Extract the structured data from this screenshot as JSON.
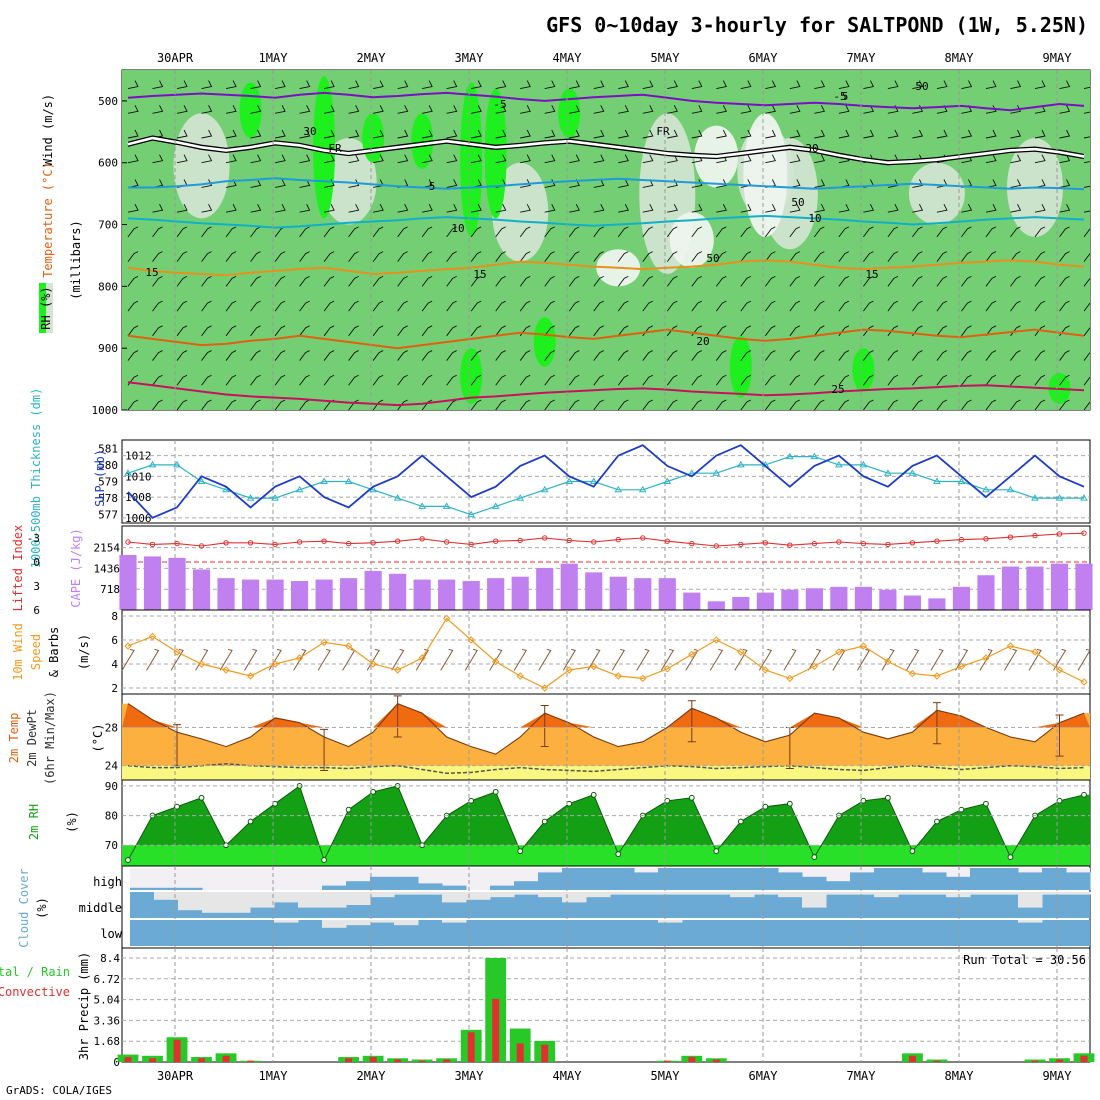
{
  "title": "GFS 0~10day 3-hourly for SALTPOND (1W, 5.25N)",
  "credit": "GrADS: COLA/IGES",
  "dates": [
    "30APR",
    "1MAY",
    "2MAY",
    "3MAY",
    "4MAY",
    "5MAY",
    "6MAY",
    "7MAY",
    "8MAY",
    "9MAY"
  ],
  "colors": {
    "rh_light": "#74cf74",
    "rh_bright": "#1ef01e",
    "rh_pale": "#d4e4d4",
    "wind_purple": "#7a10c0",
    "freezing": "#000000",
    "temp_blue": "#1e9bd8",
    "temp_cyan": "#10b0c8",
    "temp_orange": "#e8901a",
    "temp_dorange": "#e06010",
    "temp_magenta": "#c81060",
    "slp": "#1e3cc8",
    "thickness": "#2eb4c4",
    "cape": "#c080f0",
    "lifted": "#e03030",
    "wind10m": "#f09a20",
    "barbs": "#8b5a3c",
    "temp_max_fill": "#f06a10",
    "temp_fill": "#fbb040",
    "dew_fill": "#f8f880",
    "rh2m_dark": "#14a014",
    "rh2m_bright": "#28e028",
    "cloud_blue": "#6aaad4",
    "cloud_gray": "#e6e6e6",
    "cloud_white": "#f2f0f4",
    "precip_total": "#28c828",
    "precip_conv": "#e03030"
  },
  "chart_data": [
    {
      "id": "upper",
      "type": "heatmap",
      "ylabel_rh": "RH (%)",
      "ylabel_temp": "Temperature (°C)",
      "ylabel_wind": "Wind (m/s)",
      "ylabel_units": "(millibars)",
      "yticks": [
        "500",
        "600",
        "700",
        "800",
        "900",
        "1000"
      ],
      "ylim": [
        1000,
        450
      ],
      "contour_labels": [
        "5",
        "-5",
        "FR",
        "FR",
        "-5",
        "5",
        "10",
        "10",
        "15",
        "15",
        "15",
        "20",
        "25",
        "30",
        "30",
        "50",
        "50",
        "50"
      ],
      "series": [
        {
          "level": -5,
          "values": [
            495,
            492,
            490,
            488,
            490,
            492,
            495,
            490,
            487,
            490,
            494,
            492,
            489,
            487,
            490,
            493,
            497,
            500,
            497,
            494,
            492,
            490,
            495,
            500,
            503,
            505,
            507,
            505,
            503,
            505,
            508,
            510,
            512,
            510,
            508,
            512,
            515,
            510,
            505,
            508
          ]
        },
        {
          "level": 0,
          "values": [
            570,
            560,
            567,
            575,
            580,
            575,
            568,
            572,
            580,
            585,
            580,
            575,
            570,
            565,
            570,
            575,
            572,
            568,
            565,
            570,
            575,
            580,
            585,
            588,
            590,
            585,
            580,
            575,
            580,
            588,
            595,
            600,
            598,
            595,
            590,
            585,
            580,
            578,
            583,
            590
          ]
        },
        {
          "level": 5,
          "values": [
            640,
            640,
            638,
            635,
            630,
            628,
            625,
            628,
            630,
            632,
            635,
            638,
            640,
            642,
            640,
            638,
            635,
            632,
            630,
            628,
            626,
            628,
            630,
            632,
            634,
            636,
            638,
            640,
            642,
            640,
            638,
            636,
            634,
            636,
            638,
            640,
            642,
            640,
            641,
            643
          ]
        },
        {
          "level": 10,
          "values": [
            690,
            692,
            695,
            698,
            700,
            702,
            705,
            703,
            700,
            697,
            695,
            693,
            690,
            688,
            690,
            692,
            695,
            697,
            700,
            702,
            700,
            698,
            695,
            693,
            690,
            688,
            686,
            688,
            690,
            692,
            695,
            697,
            700,
            698,
            695,
            692,
            690,
            688,
            690,
            692
          ]
        },
        {
          "level": 15,
          "values": [
            770,
            775,
            778,
            780,
            782,
            778,
            775,
            772,
            770,
            775,
            780,
            778,
            775,
            772,
            770,
            765,
            760,
            762,
            765,
            768,
            770,
            772,
            770,
            768,
            765,
            760,
            758,
            760,
            765,
            770,
            772,
            770,
            768,
            765,
            762,
            760,
            758,
            760,
            765,
            768
          ]
        },
        {
          "level": 20,
          "values": [
            880,
            885,
            890,
            895,
            893,
            888,
            885,
            880,
            885,
            890,
            895,
            900,
            895,
            890,
            885,
            880,
            875,
            878,
            882,
            885,
            880,
            875,
            870,
            875,
            880,
            885,
            888,
            885,
            880,
            875,
            870,
            872,
            876,
            880,
            882,
            878,
            874,
            870,
            875,
            880
          ]
        },
        {
          "level": 25,
          "values": [
            955,
            960,
            965,
            970,
            975,
            978,
            980,
            982,
            985,
            988,
            990,
            992,
            990,
            985,
            980,
            978,
            975,
            972,
            970,
            968,
            966,
            965,
            967,
            970,
            972,
            974,
            976,
            975,
            973,
            970,
            968,
            966,
            965,
            963,
            961,
            960,
            962,
            964,
            966,
            968
          ]
        }
      ]
    },
    {
      "id": "slp_thickness",
      "type": "line",
      "ylabel_left": "1000~500mb Thickness (dm)",
      "ylabel_right": "SLP (mb)",
      "yticks_thickness": [
        "577",
        "578",
        "579",
        "580",
        "581"
      ],
      "yticks_slp": [
        "1006",
        "1008",
        "1010",
        "1012"
      ],
      "ylim_slp": [
        1005.5,
        1013.5
      ],
      "series": [
        {
          "name": "SLP (mb)",
          "values": [
            1008.5,
            1006,
            1007,
            1010,
            1009,
            1007,
            1009,
            1010,
            1008,
            1007,
            1009,
            1010,
            1012,
            1010,
            1008,
            1009,
            1011,
            1012,
            1010,
            1009,
            1012,
            1013,
            1011,
            1010,
            1012,
            1013,
            1011,
            1009,
            1011,
            1012,
            1010,
            1009,
            1011,
            1012,
            1010,
            1008,
            1010,
            1012,
            1010,
            1009
          ]
        },
        {
          "name": "1000~500mb Thickness (dm)",
          "values": [
            579.5,
            580,
            580,
            579,
            578.5,
            578,
            578,
            578.5,
            579,
            579,
            578.5,
            578,
            577.5,
            577.5,
            577,
            577.5,
            578,
            578.5,
            579,
            579,
            578.5,
            578.5,
            579,
            579.5,
            579.5,
            580,
            580,
            580.5,
            580.5,
            580,
            580,
            579.5,
            579.5,
            579,
            579,
            578.5,
            578.5,
            578,
            578,
            578
          ]
        }
      ]
    },
    {
      "id": "cape_li",
      "type": "bar",
      "ylabel_left": "Lifted Index",
      "ylabel_right": "CAPE (J/kg)",
      "yticks_li": [
        "-3",
        "0",
        "3",
        "6"
      ],
      "yticks_cape": [
        "718",
        "1436",
        "2154"
      ],
      "ylim_cape": [
        0,
        2900
      ],
      "series": [
        {
          "name": "CAPE (J/kg)",
          "values": [
            1900,
            1850,
            1800,
            1400,
            1100,
            1050,
            1050,
            1000,
            1050,
            1100,
            1350,
            1250,
            1050,
            1050,
            1000,
            1100,
            1150,
            1450,
            1600,
            1300,
            1150,
            1100,
            1100,
            600,
            300,
            450,
            600,
            700,
            750,
            800,
            800,
            700,
            500,
            400,
            800,
            1200,
            1500,
            1500,
            1600,
            1600
          ]
        },
        {
          "name": "Lifted Index",
          "values": [
            -2.5,
            -2.2,
            -2.3,
            -2.0,
            -2.4,
            -2.4,
            -2.2,
            -2.5,
            -2.6,
            -2.3,
            -2.4,
            -2.6,
            -2.9,
            -2.5,
            -2.2,
            -2.6,
            -2.7,
            -3.0,
            -2.7,
            -2.5,
            -2.8,
            -3.0,
            -2.6,
            -2.3,
            -2.0,
            -2.2,
            -2.4,
            -2.1,
            -2.3,
            -2.5,
            -2.3,
            -2.2,
            -2.4,
            -2.6,
            -2.8,
            -2.9,
            -3.1,
            -3.3,
            -3.5,
            -3.6
          ]
        }
      ]
    },
    {
      "id": "wind10m",
      "type": "line",
      "ylabel": "10m Wind Speed & Barbs (m/s)",
      "yticks": [
        "2",
        "4",
        "6",
        "8"
      ],
      "ylim": [
        1.5,
        8.5
      ],
      "series": [
        {
          "name": "10m Wind Speed",
          "values": [
            5.5,
            6.3,
            5.0,
            4.0,
            3.5,
            3.0,
            4.0,
            4.5,
            5.8,
            5.5,
            4.0,
            3.5,
            4.5,
            7.8,
            6.0,
            4.2,
            3.0,
            2.0,
            3.5,
            3.8,
            3.0,
            2.8,
            3.6,
            4.8,
            6.0,
            5.0,
            3.5,
            2.8,
            3.8,
            5.0,
            5.5,
            4.2,
            3.2,
            3.0,
            3.8,
            4.5,
            5.5,
            5.0,
            3.5,
            2.5
          ]
        }
      ]
    },
    {
      "id": "temp2m",
      "type": "area",
      "ylabel": "2m Temp 2m DewPt (6hr Min/Max) (°C)",
      "yticks": [
        "24",
        "28"
      ],
      "ylim": [
        22.5,
        31.5
      ],
      "series": [
        {
          "name": "2m Temp",
          "values": [
            30.5,
            28.8,
            27.5,
            26.8,
            26.0,
            27.0,
            29.0,
            28.5,
            27.0,
            26.0,
            27.5,
            30.5,
            29.5,
            27.0,
            26.0,
            25.2,
            27.0,
            29.5,
            28.5,
            27.0,
            26.0,
            26.5,
            28.0,
            30.0,
            29.0,
            27.5,
            26.5,
            27.2,
            29.5,
            29.0,
            27.5,
            26.8,
            27.5,
            29.8,
            29.2,
            28.0,
            27.0,
            26.5,
            28.5,
            29.5
          ]
        },
        {
          "name": "2m DewPt",
          "values": [
            24.0,
            23.8,
            23.8,
            24.0,
            24.2,
            24.0,
            23.9,
            23.8,
            23.8,
            23.7,
            23.9,
            24.0,
            23.6,
            23.2,
            23.3,
            23.6,
            23.8,
            23.6,
            23.5,
            23.4,
            23.6,
            23.8,
            24.0,
            23.9,
            23.7,
            23.8,
            23.9,
            24.0,
            23.8,
            23.6,
            23.5,
            23.8,
            24.0,
            23.8,
            23.6,
            23.8,
            24.0,
            23.9,
            23.7,
            23.8
          ]
        }
      ]
    },
    {
      "id": "rh2m",
      "type": "area",
      "ylabel": "2m RH (%)",
      "yticks": [
        "70",
        "80",
        "90"
      ],
      "ylim": [
        63,
        92
      ],
      "series": [
        {
          "name": "2m RH",
          "values": [
            65,
            80,
            83,
            86,
            70,
            78,
            84,
            90,
            65,
            82,
            88,
            90,
            70,
            80,
            85,
            88,
            68,
            78,
            84,
            87,
            67,
            80,
            85,
            86,
            68,
            78,
            83,
            84,
            66,
            80,
            85,
            86,
            68,
            78,
            82,
            84,
            66,
            80,
            85,
            87
          ]
        }
      ]
    },
    {
      "id": "cloud",
      "type": "bar",
      "ylabel": "Cloud Cover (%)",
      "levels": [
        "high",
        "middle",
        "low"
      ],
      "series": [
        {
          "name": "high",
          "values": [
            10,
            10,
            10,
            0,
            0,
            0,
            0,
            0,
            20,
            40,
            60,
            60,
            30,
            20,
            0,
            20,
            40,
            80,
            100,
            100,
            100,
            80,
            100,
            100,
            100,
            100,
            100,
            80,
            60,
            40,
            80,
            100,
            100,
            80,
            60,
            100,
            100,
            80,
            100,
            80
          ]
        },
        {
          "name": "middle",
          "values": [
            0,
            30,
            70,
            80,
            80,
            60,
            40,
            60,
            60,
            50,
            20,
            10,
            10,
            40,
            30,
            20,
            10,
            20,
            40,
            20,
            10,
            10,
            10,
            10,
            10,
            20,
            10,
            20,
            60,
            10,
            10,
            20,
            10,
            10,
            20,
            10,
            10,
            60,
            10,
            10
          ]
        },
        {
          "name": "low",
          "values": [
            0,
            0,
            0,
            0,
            0,
            0,
            10,
            0,
            30,
            20,
            10,
            20,
            0,
            10,
            0,
            0,
            0,
            0,
            0,
            0,
            0,
            0,
            10,
            0,
            0,
            0,
            0,
            0,
            0,
            0,
            0,
            0,
            0,
            0,
            0,
            0,
            0,
            10,
            0,
            0
          ]
        }
      ]
    },
    {
      "id": "precip",
      "type": "bar",
      "ylabel_total": "Total / Rain",
      "ylabel_conv": "Convective",
      "ylabel": "3hr Precip (mm)",
      "yticks": [
        "0",
        "1.68",
        "3.36",
        "5.04",
        "6.72",
        "8.4"
      ],
      "ylim": [
        0,
        8.4
      ],
      "run_total": "Run Total = 30.56",
      "series": [
        {
          "name": "Total",
          "values": [
            0.6,
            0.5,
            2.0,
            0.4,
            0.7,
            0.1,
            0,
            0,
            0,
            0.4,
            0.5,
            0.3,
            0.2,
            0.3,
            2.6,
            8.4,
            2.7,
            1.7,
            0,
            0,
            0,
            0,
            0.1,
            0.5,
            0.3,
            0,
            0,
            0,
            0,
            0,
            0,
            0,
            0.7,
            0.2,
            0,
            0,
            0,
            0.2,
            0.3,
            0.7
          ]
        },
        {
          "name": "Convective",
          "values": [
            0.4,
            0.3,
            1.8,
            0.3,
            0.5,
            0.1,
            0,
            0,
            0,
            0.3,
            0.4,
            0.2,
            0.1,
            0.2,
            2.4,
            5.1,
            1.5,
            1.4,
            0,
            0,
            0,
            0,
            0.1,
            0.4,
            0.2,
            0,
            0,
            0,
            0,
            0,
            0,
            0,
            0.5,
            0.1,
            0,
            0,
            0,
            0.1,
            0.2,
            0.5
          ]
        }
      ]
    }
  ]
}
